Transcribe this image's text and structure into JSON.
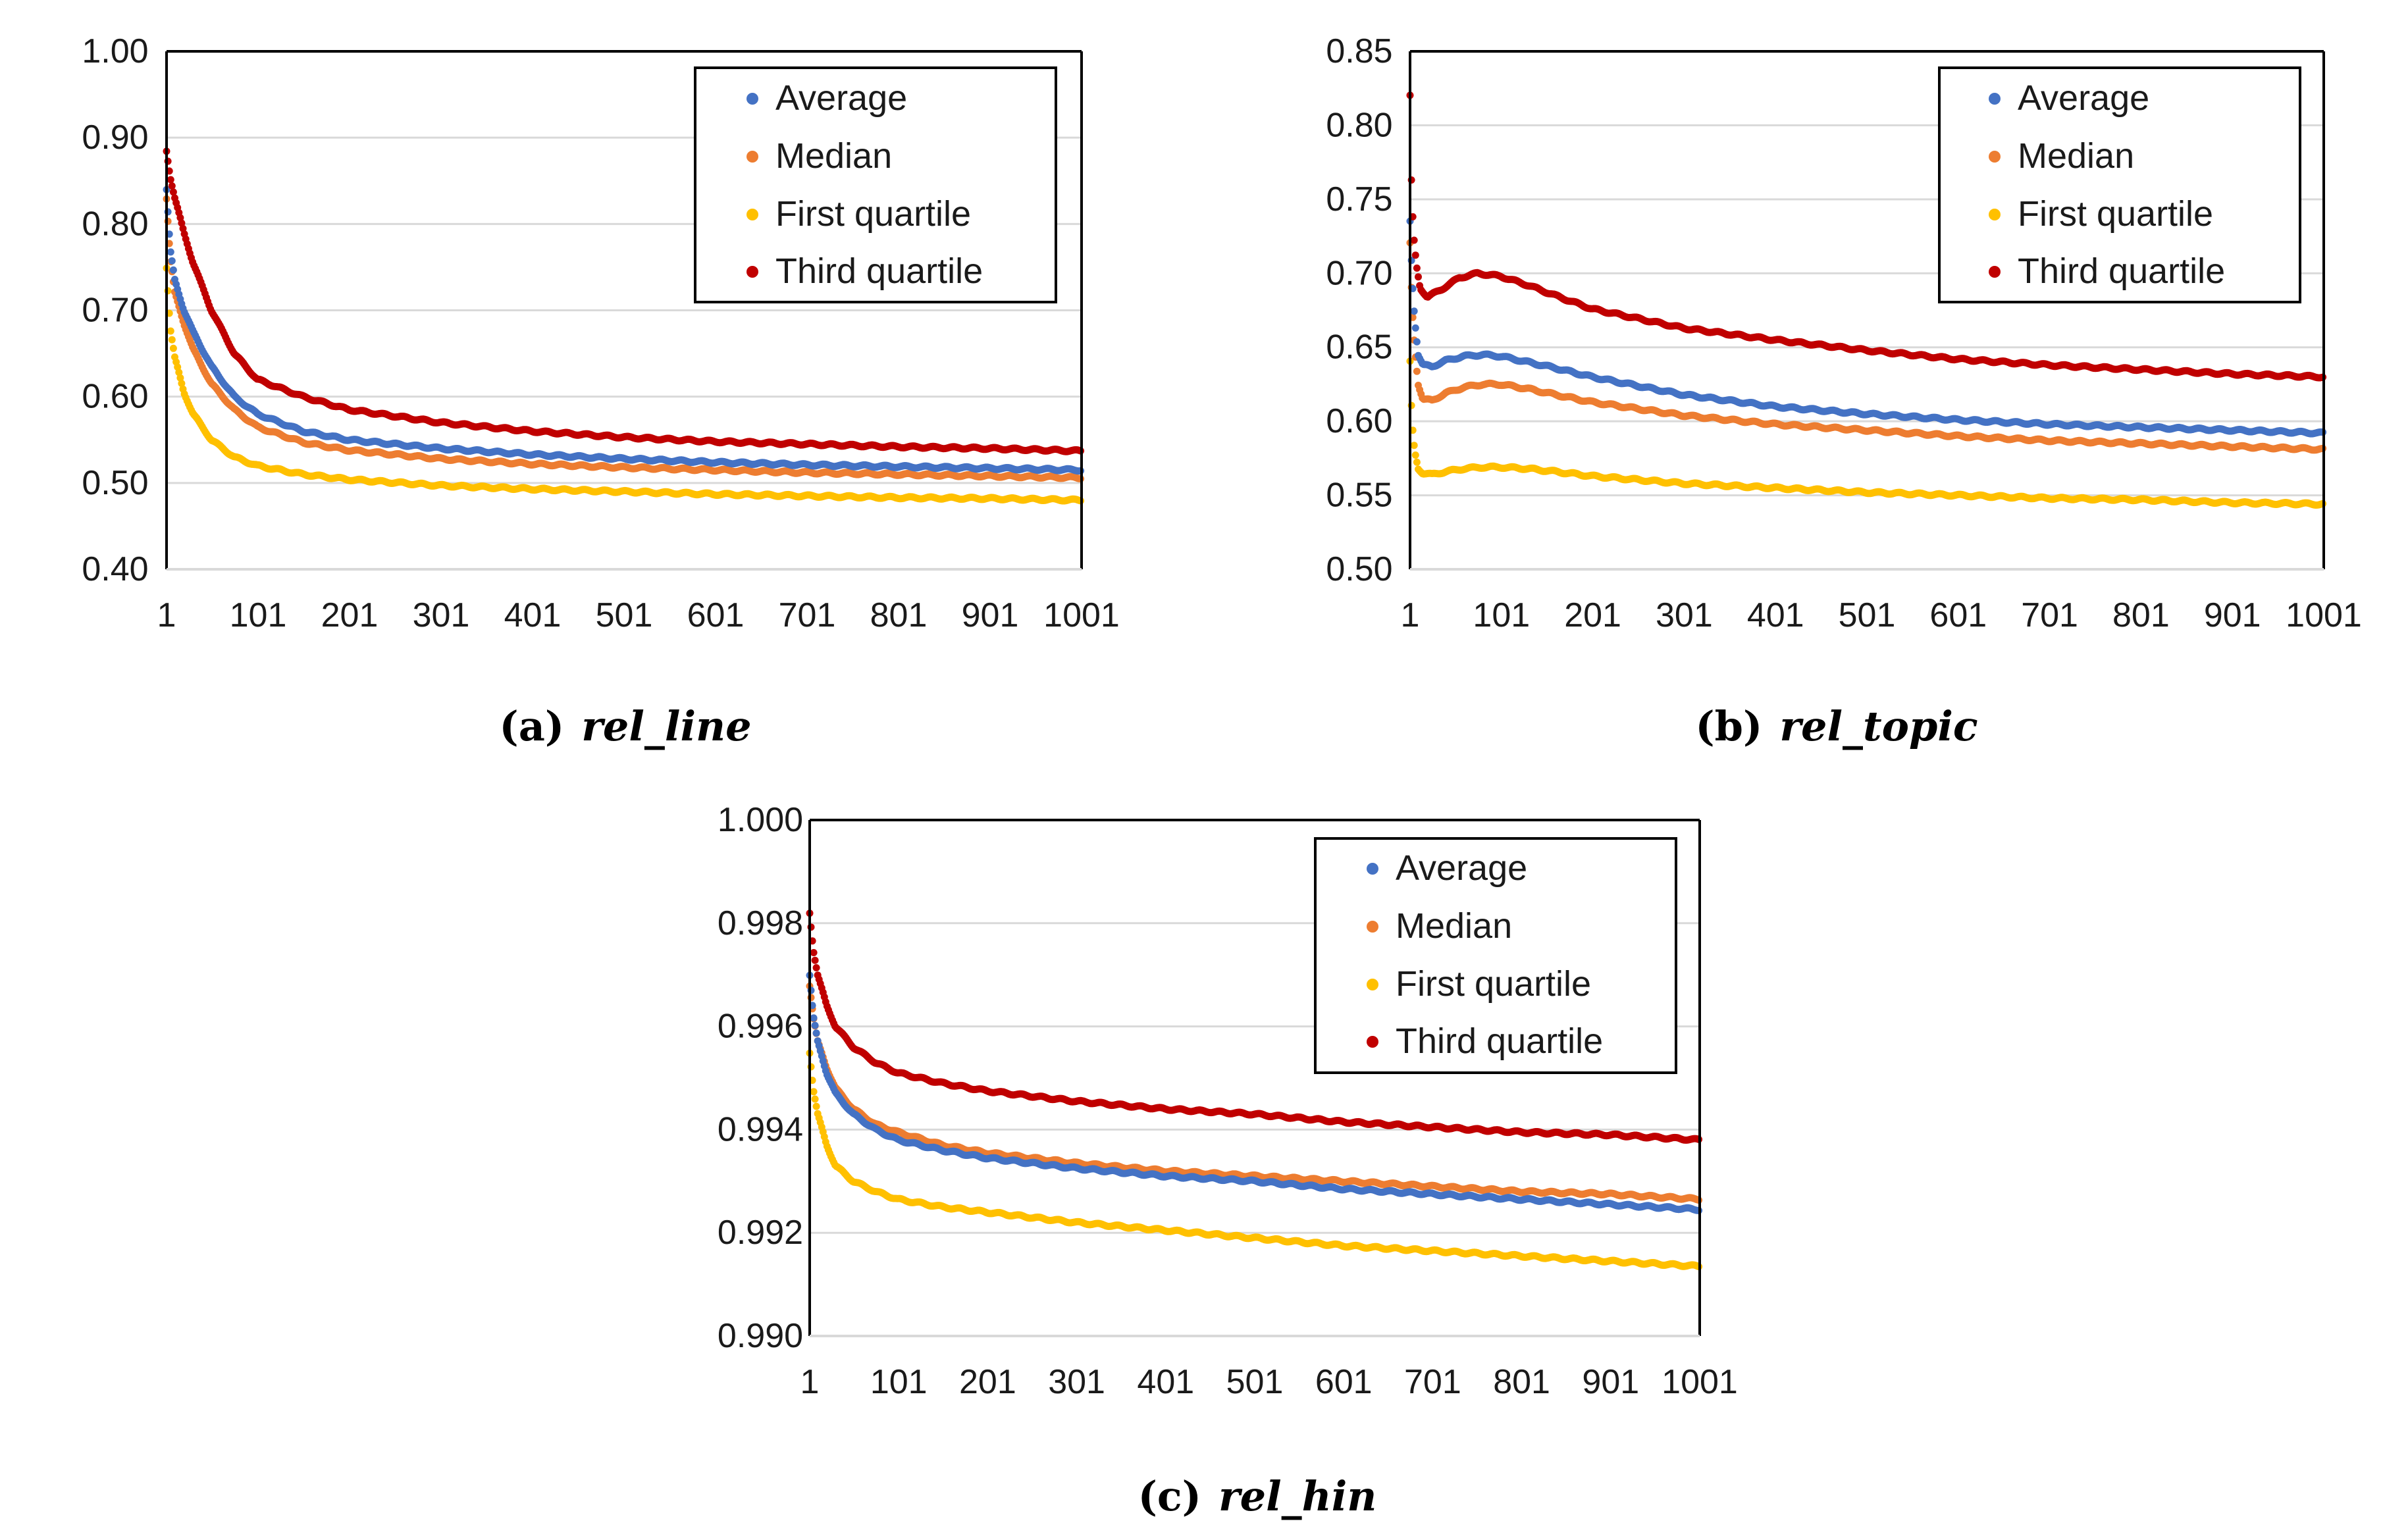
{
  "colors": {
    "average": "#4472C4",
    "median": "#ED7D31",
    "first_quartile": "#FFC000",
    "third_quartile": "#C00000",
    "gridline": "#D9D9D9",
    "axis": "#000000"
  },
  "chart_data": [
    {
      "type": "scatter",
      "caption_prefix": "(a)",
      "caption_name": "rel_line",
      "x_ticks": [
        "1",
        "101",
        "201",
        "301",
        "401",
        "501",
        "601",
        "701",
        "801",
        "901",
        "1001"
      ],
      "xlim": [
        1,
        1001
      ],
      "ylim": [
        0.4,
        1.0
      ],
      "y_ticks": [
        "0.40",
        "0.50",
        "0.60",
        "0.70",
        "0.80",
        "0.90",
        "1.00"
      ],
      "legend_position": "top-right",
      "series": [
        {
          "name": "Average",
          "key": "average",
          "x": [
            1,
            5,
            10,
            20,
            30,
            50,
            75,
            100,
            150,
            200,
            300,
            400,
            500,
            600,
            700,
            800,
            900,
            1001
          ],
          "values": [
            0.84,
            0.77,
            0.735,
            0.7,
            0.675,
            0.635,
            0.6,
            0.58,
            0.56,
            0.55,
            0.54,
            0.533,
            0.528,
            0.524,
            0.521,
            0.519,
            0.517,
            0.515
          ]
        },
        {
          "name": "Median",
          "key": "median",
          "x": [
            1,
            5,
            10,
            20,
            30,
            50,
            75,
            100,
            150,
            200,
            300,
            400,
            500,
            600,
            700,
            800,
            900,
            1001
          ],
          "values": [
            0.83,
            0.76,
            0.72,
            0.685,
            0.655,
            0.615,
            0.585,
            0.565,
            0.547,
            0.538,
            0.528,
            0.522,
            0.518,
            0.515,
            0.512,
            0.51,
            0.508,
            0.506
          ]
        },
        {
          "name": "First quartile",
          "key": "first_quartile",
          "x": [
            1,
            5,
            10,
            20,
            30,
            50,
            75,
            100,
            150,
            200,
            300,
            400,
            500,
            600,
            700,
            800,
            900,
            1001
          ],
          "values": [
            0.75,
            0.68,
            0.645,
            0.605,
            0.58,
            0.55,
            0.53,
            0.52,
            0.51,
            0.504,
            0.497,
            0.493,
            0.49,
            0.487,
            0.485,
            0.483,
            0.482,
            0.48
          ]
        },
        {
          "name": "Third quartile",
          "key": "third_quartile",
          "x": [
            1,
            5,
            10,
            20,
            30,
            50,
            75,
            100,
            150,
            200,
            300,
            400,
            500,
            600,
            700,
            800,
            900,
            1001
          ],
          "values": [
            0.885,
            0.855,
            0.83,
            0.79,
            0.755,
            0.7,
            0.65,
            0.62,
            0.6,
            0.585,
            0.57,
            0.56,
            0.553,
            0.548,
            0.545,
            0.542,
            0.54,
            0.537
          ]
        }
      ]
    },
    {
      "type": "scatter",
      "caption_prefix": "(b)",
      "caption_name": "rel_topic",
      "x_ticks": [
        "1",
        "101",
        "201",
        "301",
        "401",
        "501",
        "601",
        "701",
        "801",
        "901",
        "1001"
      ],
      "xlim": [
        1,
        1001
      ],
      "ylim": [
        0.5,
        0.85
      ],
      "y_ticks": [
        "0.50",
        "0.55",
        "0.60",
        "0.65",
        "0.70",
        "0.75",
        "0.80",
        "0.85"
      ],
      "legend_position": "top-right",
      "series": [
        {
          "name": "Average",
          "key": "average",
          "x": [
            1,
            3,
            6,
            10,
            15,
            25,
            40,
            60,
            80,
            100,
            130,
            160,
            200,
            300,
            400,
            500,
            600,
            700,
            800,
            900,
            1001
          ],
          "values": [
            0.735,
            0.7,
            0.67,
            0.645,
            0.638,
            0.637,
            0.641,
            0.644,
            0.645,
            0.644,
            0.64,
            0.636,
            0.63,
            0.618,
            0.61,
            0.605,
            0.601,
            0.598,
            0.596,
            0.594,
            0.592
          ]
        },
        {
          "name": "Median",
          "key": "median",
          "x": [
            1,
            3,
            6,
            10,
            15,
            25,
            40,
            60,
            80,
            100,
            130,
            160,
            200,
            300,
            400,
            500,
            600,
            700,
            800,
            900,
            1001
          ],
          "values": [
            0.72,
            0.68,
            0.65,
            0.625,
            0.615,
            0.614,
            0.619,
            0.623,
            0.625,
            0.625,
            0.622,
            0.618,
            0.613,
            0.604,
            0.598,
            0.594,
            0.59,
            0.587,
            0.585,
            0.583,
            0.581
          ]
        },
        {
          "name": "First quartile",
          "key": "first_quartile",
          "x": [
            1,
            3,
            6,
            10,
            15,
            25,
            40,
            60,
            80,
            100,
            130,
            160,
            200,
            300,
            400,
            500,
            600,
            700,
            800,
            900,
            1001
          ],
          "values": [
            0.64,
            0.6,
            0.58,
            0.568,
            0.565,
            0.564,
            0.566,
            0.568,
            0.569,
            0.569,
            0.568,
            0.566,
            0.563,
            0.558,
            0.555,
            0.552,
            0.55,
            0.548,
            0.547,
            0.545,
            0.544
          ]
        },
        {
          "name": "Third quartile",
          "key": "third_quartile",
          "x": [
            1,
            2,
            3,
            5,
            8,
            12,
            20,
            35,
            55,
            75,
            100,
            130,
            160,
            200,
            300,
            400,
            500,
            600,
            700,
            800,
            900,
            1001
          ],
          "values": [
            0.82,
            0.775,
            0.75,
            0.725,
            0.705,
            0.69,
            0.684,
            0.689,
            0.697,
            0.7,
            0.698,
            0.692,
            0.685,
            0.676,
            0.663,
            0.655,
            0.648,
            0.642,
            0.638,
            0.635,
            0.632,
            0.63
          ]
        }
      ]
    },
    {
      "type": "scatter",
      "caption_prefix": "(c)",
      "caption_name": "rel_hin",
      "x_ticks": [
        "1",
        "101",
        "201",
        "301",
        "401",
        "501",
        "601",
        "701",
        "801",
        "901",
        "1001"
      ],
      "xlim": [
        1,
        1001
      ],
      "ylim": [
        0.99,
        1.0
      ],
      "y_ticks": [
        "0.990",
        "0.992",
        "0.994",
        "0.996",
        "0.998",
        "1.000"
      ],
      "legend_position": "top-right",
      "series": [
        {
          "name": "Average",
          "key": "average",
          "x": [
            1,
            5,
            10,
            20,
            30,
            50,
            75,
            100,
            150,
            200,
            300,
            400,
            500,
            600,
            700,
            800,
            900,
            1001
          ],
          "values": [
            0.997,
            0.9962,
            0.9957,
            0.9951,
            0.9947,
            0.9943,
            0.994,
            0.9938,
            0.9936,
            0.99345,
            0.99325,
            0.9931,
            0.993,
            0.99285,
            0.99275,
            0.99265,
            0.99255,
            0.99245
          ]
        },
        {
          "name": "Median",
          "key": "median",
          "x": [
            1,
            5,
            10,
            20,
            30,
            50,
            75,
            100,
            150,
            200,
            300,
            400,
            500,
            600,
            700,
            800,
            900,
            1001
          ],
          "values": [
            0.9968,
            0.9962,
            0.9957,
            0.9952,
            0.9948,
            0.9944,
            0.9941,
            0.99395,
            0.9937,
            0.99355,
            0.99335,
            0.9932,
            0.9931,
            0.993,
            0.9929,
            0.9928,
            0.99275,
            0.99265
          ]
        },
        {
          "name": "First quartile",
          "key": "first_quartile",
          "x": [
            1,
            5,
            10,
            20,
            30,
            50,
            75,
            100,
            150,
            200,
            300,
            400,
            500,
            600,
            700,
            800,
            900,
            1001
          ],
          "values": [
            0.9955,
            0.9948,
            0.9943,
            0.9937,
            0.9933,
            0.993,
            0.9928,
            0.99265,
            0.9925,
            0.9924,
            0.9922,
            0.99205,
            0.9919,
            0.99175,
            0.99165,
            0.99155,
            0.99145,
            0.99135
          ]
        },
        {
          "name": "Third quartile",
          "key": "third_quartile",
          "x": [
            1,
            5,
            10,
            20,
            30,
            50,
            75,
            100,
            150,
            200,
            300,
            400,
            500,
            600,
            700,
            800,
            900,
            1001
          ],
          "values": [
            0.9982,
            0.9975,
            0.997,
            0.9964,
            0.996,
            0.9956,
            0.9953,
            0.9951,
            0.9949,
            0.99475,
            0.99455,
            0.9944,
            0.9943,
            0.99415,
            0.99405,
            0.99395,
            0.9939,
            0.9938
          ]
        }
      ]
    }
  ]
}
